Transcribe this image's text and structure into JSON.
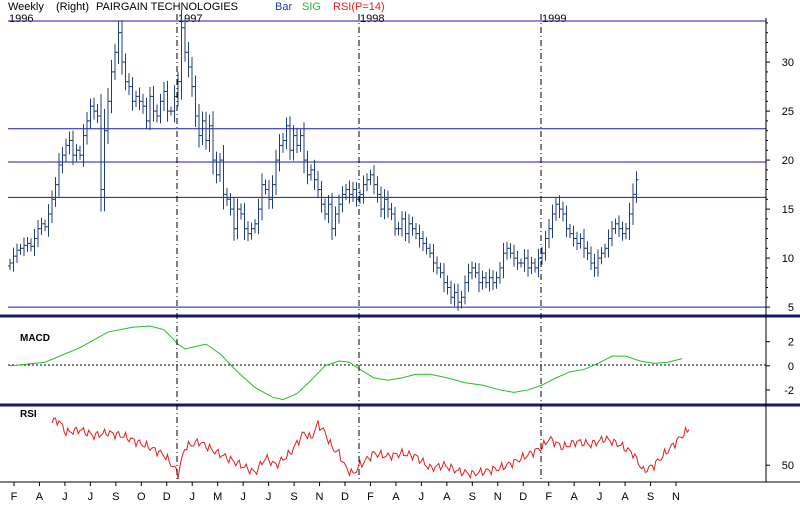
{
  "header": {
    "period": "Weekly",
    "scale": "(Right)",
    "title": "PAIRGAIN TECHNOLOGIES",
    "legend": [
      {
        "label": "Bar",
        "color": "#1f3fa0"
      },
      {
        "label": "SIG",
        "color": "#22c022"
      },
      {
        "label": "RSI(P=14)",
        "color": "#e02020"
      }
    ]
  },
  "colors": {
    "bar": "#1f3f7a",
    "macd": "#22c022",
    "rsi": "#e02020",
    "hline": "#1a1aa0",
    "panel_sep": "#1a1a60"
  },
  "chart_data": [
    {
      "type": "ohlc",
      "years": [
        {
          "label": "1996",
          "week": 0
        },
        {
          "label": "1997",
          "week": 48
        },
        {
          "label": "1998",
          "week": 100
        },
        {
          "label": "1999",
          "week": 152
        }
      ],
      "months": [
        "F",
        "A",
        "J",
        "J",
        "S",
        "O",
        "D",
        "J",
        "M",
        "J",
        "J",
        "S",
        "N",
        "D",
        "F",
        "A",
        "J",
        "A",
        "S",
        "N",
        "D",
        "F",
        "A",
        "J",
        "A",
        "S",
        "N"
      ],
      "yticks": [
        5,
        10,
        15,
        20,
        25,
        30
      ],
      "ylim": [
        4.5,
        34.5
      ],
      "horizontal_lines": [
        5,
        16.2,
        19.8,
        23.2,
        34.2
      ],
      "close": [
        9.5,
        10.2,
        10.8,
        11.0,
        11.3,
        11.5,
        11.2,
        12.0,
        13.0,
        13.5,
        13.2,
        14.5,
        16.0,
        17.5,
        19.5,
        20.5,
        21.5,
        22.0,
        20.5,
        21.0,
        20.5,
        22.5,
        24.0,
        25.5,
        25.0,
        24.5,
        17.0,
        23.0,
        26.0,
        29.0,
        31.0,
        33.0,
        30.0,
        28.0,
        27.5,
        26.0,
        26.5,
        26.0,
        25.5,
        24.0,
        26.5,
        25.0,
        24.5,
        26.0,
        27.0,
        25.0,
        25.0,
        26.5,
        28.0,
        33.5,
        31.0,
        29.5,
        27.5,
        24.5,
        22.5,
        24.0,
        22.0,
        23.5,
        20.0,
        18.5,
        20.0,
        16.5,
        16.0,
        15.0,
        13.0,
        15.0,
        14.5,
        13.0,
        12.5,
        13.0,
        13.5,
        15.0,
        17.5,
        17.0,
        16.0,
        17.5,
        20.0,
        21.5,
        22.0,
        23.5,
        21.0,
        22.5,
        21.5,
        22.5,
        20.0,
        18.5,
        19.0,
        18.0,
        17.0,
        15.5,
        14.5,
        15.5,
        13.0,
        14.5,
        15.5,
        16.5,
        17.0,
        16.5,
        17.0,
        16.0,
        16.5,
        17.5,
        18.0,
        18.5,
        17.5,
        16.5,
        15.0,
        16.0,
        15.0,
        14.5,
        13.0,
        13.0,
        14.0,
        12.5,
        13.5,
        13.0,
        12.5,
        12.0,
        11.5,
        11.0,
        10.5,
        9.5,
        9.0,
        8.5,
        7.5,
        7.0,
        6.0,
        6.5,
        5.5,
        6.0,
        7.5,
        8.5,
        9.0,
        8.5,
        7.5,
        8.0,
        7.5,
        8.0,
        7.5,
        8.0,
        9.0,
        10.5,
        11.0,
        10.5,
        10.0,
        9.5,
        9.5,
        10.0,
        9.0,
        9.5,
        9.0,
        10.0,
        10.5,
        12.0,
        13.0,
        14.5,
        15.5,
        15.0,
        14.5,
        13.0,
        12.5,
        12.0,
        11.5,
        12.0,
        11.0,
        10.5,
        9.5,
        9.0,
        10.0,
        10.5,
        11.0,
        12.0,
        13.0,
        13.5,
        13.0,
        12.5,
        13.0,
        14.5,
        16.5,
        18.0
      ]
    },
    {
      "type": "line",
      "label": "MACD",
      "yticks": [
        2,
        0,
        -2
      ],
      "ylim": [
        -3.0,
        3.8
      ],
      "points": [
        [
          0,
          0
        ],
        [
          10,
          0.3
        ],
        [
          20,
          1.5
        ],
        [
          28,
          2.8
        ],
        [
          35,
          3.2
        ],
        [
          40,
          3.3
        ],
        [
          44,
          3.0
        ],
        [
          48,
          1.8
        ],
        [
          50,
          1.4
        ],
        [
          53,
          1.6
        ],
        [
          56,
          1.8
        ],
        [
          60,
          1.0
        ],
        [
          65,
          -0.5
        ],
        [
          70,
          -1.8
        ],
        [
          75,
          -2.6
        ],
        [
          78,
          -2.8
        ],
        [
          82,
          -2.3
        ],
        [
          86,
          -1.2
        ],
        [
          90,
          0
        ],
        [
          94,
          0.4
        ],
        [
          97,
          0.3
        ],
        [
          100,
          -0.3
        ],
        [
          104,
          -1.0
        ],
        [
          108,
          -1.2
        ],
        [
          112,
          -1.0
        ],
        [
          116,
          -0.7
        ],
        [
          120,
          -0.7
        ],
        [
          125,
          -1.0
        ],
        [
          130,
          -1.4
        ],
        [
          135,
          -1.6
        ],
        [
          140,
          -2.0
        ],
        [
          144,
          -2.2
        ],
        [
          148,
          -2.0
        ],
        [
          152,
          -1.6
        ],
        [
          156,
          -1.0
        ],
        [
          160,
          -0.5
        ],
        [
          164,
          -0.3
        ],
        [
          168,
          0.2
        ],
        [
          172,
          0.8
        ],
        [
          176,
          0.8
        ],
        [
          180,
          0.4
        ],
        [
          184,
          0.2
        ],
        [
          188,
          0.3
        ],
        [
          192,
          0.6
        ]
      ]
    },
    {
      "type": "line",
      "label": "RSI",
      "yticks": [
        50
      ],
      "ylim": [
        40,
        88
      ],
      "points": [
        [
          12,
          80
        ],
        [
          14,
          80
        ],
        [
          16,
          72
        ],
        [
          20,
          74
        ],
        [
          24,
          70
        ],
        [
          28,
          72
        ],
        [
          32,
          70
        ],
        [
          36,
          66
        ],
        [
          40,
          62
        ],
        [
          44,
          57
        ],
        [
          47,
          48
        ],
        [
          48,
          44
        ],
        [
          50,
          62
        ],
        [
          54,
          66
        ],
        [
          58,
          60
        ],
        [
          62,
          55
        ],
        [
          66,
          50
        ],
        [
          70,
          45
        ],
        [
          73,
          55
        ],
        [
          76,
          50
        ],
        [
          80,
          58
        ],
        [
          84,
          72
        ],
        [
          86,
          68
        ],
        [
          88,
          78
        ],
        [
          90,
          72
        ],
        [
          92,
          62
        ],
        [
          94,
          58
        ],
        [
          96,
          48
        ],
        [
          98,
          44
        ],
        [
          100,
          50
        ],
        [
          104,
          58
        ],
        [
          108,
          56
        ],
        [
          112,
          58
        ],
        [
          116,
          56
        ],
        [
          120,
          48
        ],
        [
          124,
          50
        ],
        [
          128,
          46
        ],
        [
          132,
          44
        ],
        [
          136,
          46
        ],
        [
          140,
          48
        ],
        [
          144,
          52
        ],
        [
          148,
          57
        ],
        [
          152,
          62
        ],
        [
          154,
          68
        ],
        [
          158,
          62
        ],
        [
          162,
          66
        ],
        [
          166,
          64
        ],
        [
          170,
          68
        ],
        [
          174,
          64
        ],
        [
          178,
          58
        ],
        [
          181,
          46
        ],
        [
          184,
          50
        ],
        [
          188,
          60
        ],
        [
          192,
          70
        ],
        [
          194,
          74
        ]
      ]
    }
  ]
}
